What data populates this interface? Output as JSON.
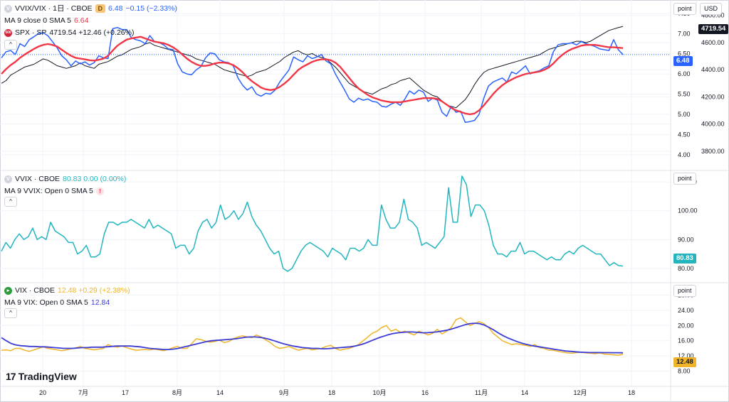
{
  "header": {
    "pair_title": "VVIX/VIX · 1日 · CBOE",
    "interval_badge": "D",
    "last_value": "6.48",
    "change": "−0.15 (−2.33%)",
    "ma_label": "MA 9 close 0 SMA 5",
    "ma_value": "6.64",
    "spx_icon": "500",
    "spx_label": "SPX · SP",
    "spx_value": "4719.54 +12.46 (+0.26%)"
  },
  "vvix_pane": {
    "title": "VVIX · CBOE",
    "value": "80.83 0.00 (0.00%)",
    "ma_label": "MA 9 VVIX: Open 0 SMA 5",
    "warning": "!"
  },
  "vix_pane": {
    "title": "VIX · CBOE",
    "value": "12.48 +0.29 (+2.38%)",
    "ma_label": "MA 9 VIX: Open 0 SMA 5",
    "ma_value": "12.84"
  },
  "axis": {
    "scale_button": "point",
    "currency_button": "USD",
    "collapse_icon": "chevron-up-icon",
    "collapse_glyph": "^"
  },
  "price_tags": {
    "spx": "4719.54",
    "ratio": "6.48",
    "vvix": "80.83",
    "vix": "12.48"
  },
  "logo": {
    "mark": "17",
    "name": "TradingView"
  },
  "colors": {
    "ratio": "#2962ff",
    "ratio_ma": "#f23645",
    "spx": "#131722",
    "vvix": "#22b5bf",
    "vix": "#f0b429",
    "vix_ma": "#3b3bd6",
    "grid": "#f0f3fa"
  },
  "chart_data": [
    {
      "type": "line",
      "pane": "main",
      "title": "VVIX/VIX · 1日 · CBOE",
      "x_ticks": [
        "20",
        "7月",
        "17",
        "8月",
        "14",
        "9月",
        "18",
        "10月",
        "16",
        "11月",
        "14",
        "12月",
        "18"
      ],
      "y_left_ticks": [
        "7.50",
        "7.00",
        "6.50",
        "6.00",
        "5.50",
        "5.00",
        "4.50",
        "4.00"
      ],
      "y_right_ticks": [
        "4800.00",
        "4600.00",
        "4400.00",
        "4200.00",
        "4000.00",
        "3800.00"
      ],
      "ylim": [
        3.75,
        7.55
      ],
      "y2lim": [
        3700,
        4830
      ],
      "series": [
        {
          "name": "VVIX/VIX",
          "axis": "left",
          "values": [
            6.4,
            6.55,
            6.58,
            6.48,
            6.75,
            6.68,
            6.85,
            6.92,
            7.0,
            7.02,
            6.95,
            6.8,
            6.65,
            6.45,
            6.35,
            6.2,
            6.32,
            6.25,
            6.3,
            6.22,
            6.28,
            6.45,
            6.4,
            6.38,
            7.12,
            7.15,
            7.1,
            7.1,
            6.9,
            6.85,
            6.82,
            6.75,
            6.95,
            6.8,
            6.78,
            6.72,
            6.62,
            6.6,
            6.25,
            6.05,
            6.0,
            5.98,
            6.1,
            6.18,
            6.4,
            6.52,
            6.5,
            6.35,
            6.3,
            6.28,
            6.2,
            5.9,
            5.72,
            5.6,
            5.68,
            5.5,
            5.45,
            5.52,
            5.5,
            5.6,
            5.8,
            5.95,
            6.1,
            6.42,
            6.35,
            6.3,
            6.45,
            6.38,
            6.42,
            6.48,
            6.32,
            6.25,
            6.0,
            5.8,
            5.6,
            5.38,
            5.3,
            5.4,
            5.35,
            5.38,
            5.32,
            5.3,
            5.2,
            5.18,
            5.25,
            5.3,
            5.22,
            5.38,
            5.58,
            5.5,
            5.6,
            5.55,
            5.32,
            5.4,
            5.35,
            5.05,
            4.95,
            5.2,
            5.05,
            5.08,
            4.8,
            4.82,
            4.85,
            5.0,
            5.4,
            5.7,
            5.8,
            5.85,
            5.9,
            5.8,
            6.05,
            6.0,
            6.1,
            6.2,
            6.0,
            6.05,
            6.08,
            6.15,
            6.2,
            6.55,
            6.72,
            6.75,
            6.75,
            6.77,
            6.72,
            6.8,
            6.75,
            6.72,
            6.68,
            6.62,
            6.6,
            6.58,
            6.85,
            6.6,
            6.48
          ]
        },
        {
          "name": "MA 9 close 0 SMA 5",
          "axis": "left",
          "values": [
            6.0,
            6.12,
            6.22,
            6.3,
            6.4,
            6.48,
            6.55,
            6.62,
            6.68,
            6.72,
            6.74,
            6.72,
            6.68,
            6.6,
            6.52,
            6.45,
            6.4,
            6.38,
            6.36,
            6.34,
            6.33,
            6.35,
            6.38,
            6.45,
            6.58,
            6.7,
            6.78,
            6.85,
            6.88,
            6.9,
            6.92,
            6.88,
            6.84,
            6.8,
            6.78,
            6.76,
            6.72,
            6.66,
            6.58,
            6.48,
            6.38,
            6.3,
            6.24,
            6.2,
            6.2,
            6.22,
            6.26,
            6.28,
            6.28,
            6.26,
            6.22,
            6.14,
            6.04,
            5.92,
            5.82,
            5.74,
            5.66,
            5.62,
            5.6,
            5.62,
            5.68,
            5.76,
            5.86,
            5.98,
            6.1,
            6.18,
            6.24,
            6.3,
            6.34,
            6.36,
            6.36,
            6.34,
            6.28,
            6.18,
            6.04,
            5.9,
            5.76,
            5.64,
            5.56,
            5.48,
            5.42,
            5.38,
            5.34,
            5.32,
            5.3,
            5.3,
            5.3,
            5.32,
            5.34,
            5.36,
            5.38,
            5.4,
            5.4,
            5.4,
            5.38,
            5.32,
            5.24,
            5.16,
            5.1,
            5.06,
            5.02,
            5.0,
            5.02,
            5.1,
            5.22,
            5.36,
            5.5,
            5.62,
            5.72,
            5.8,
            5.86,
            5.92,
            5.96,
            6.0,
            6.02,
            6.04,
            6.06,
            6.1,
            6.16,
            6.26,
            6.38,
            6.48,
            6.56,
            6.62,
            6.66,
            6.7,
            6.72,
            6.72,
            6.72,
            6.7,
            6.68,
            6.66,
            6.66,
            6.65,
            6.64
          ]
        },
        {
          "name": "SPX · SP",
          "axis": "right",
          "values": [
            4300,
            4320,
            4360,
            4380,
            4400,
            4420,
            4430,
            4440,
            4460,
            4480,
            4470,
            4450,
            4430,
            4420,
            4410,
            4420,
            4430,
            4450,
            4430,
            4420,
            4410,
            4440,
            4450,
            4460,
            4480,
            4500,
            4510,
            4530,
            4550,
            4560,
            4570,
            4590,
            4600,
            4580,
            4570,
            4560,
            4550,
            4540,
            4530,
            4520,
            4510,
            4500,
            4480,
            4470,
            4460,
            4450,
            4440,
            4420,
            4400,
            4390,
            4380,
            4370,
            4360,
            4350,
            4360,
            4380,
            4390,
            4400,
            4420,
            4440,
            4460,
            4490,
            4510,
            4530,
            4540,
            4520,
            4510,
            4520,
            4500,
            4490,
            4480,
            4450,
            4420,
            4380,
            4340,
            4300,
            4280,
            4260,
            4240,
            4230,
            4220,
            4240,
            4260,
            4270,
            4290,
            4300,
            4320,
            4330,
            4340,
            4310,
            4280,
            4250,
            4230,
            4210,
            4200,
            4170,
            4140,
            4130,
            4120,
            4150,
            4180,
            4230,
            4290,
            4340,
            4380,
            4400,
            4410,
            4420,
            4430,
            4440,
            4450,
            4460,
            4470,
            4480,
            4490,
            4500,
            4510,
            4530,
            4550,
            4560,
            4570,
            4580,
            4590,
            4600,
            4610,
            4610,
            4600,
            4610,
            4630,
            4650,
            4670,
            4690,
            4700,
            4710,
            4719.54
          ]
        }
      ]
    },
    {
      "type": "line",
      "pane": "vvix",
      "title": "VVIX · CBOE",
      "y_ticks": [
        "110.00",
        "100.00",
        "90.00",
        "80.00"
      ],
      "ylim": [
        79,
        111
      ],
      "series": [
        {
          "name": "VVIX · CBOE",
          "values": [
            86,
            89,
            87,
            90,
            92,
            90,
            91,
            94,
            90,
            91,
            90,
            96,
            93,
            92,
            91,
            89,
            89,
            85,
            86,
            88,
            84,
            84,
            85,
            92,
            96,
            96,
            95,
            96,
            96,
            97,
            96,
            95,
            94,
            97,
            94,
            95,
            94,
            93,
            92,
            87,
            88,
            88,
            85,
            87,
            93,
            96,
            97,
            94,
            96,
            102,
            97,
            98,
            100,
            97,
            99,
            103,
            98,
            95,
            93,
            90,
            87,
            85,
            86,
            80,
            79,
            80,
            83,
            86,
            88,
            89,
            88,
            87,
            86,
            84,
            87,
            86,
            85,
            83,
            87,
            87,
            86,
            87,
            90,
            88,
            88,
            102,
            97,
            94,
            94,
            96,
            104,
            97,
            96,
            94,
            88,
            89,
            88,
            87,
            89,
            91,
            108,
            96,
            96,
            112,
            109,
            98,
            102,
            102,
            100,
            95,
            88,
            85,
            85,
            84,
            86,
            86,
            89,
            85,
            86,
            86,
            85,
            84,
            83,
            84,
            83,
            83,
            85,
            86,
            85,
            87,
            88,
            87,
            86,
            85,
            85,
            83,
            81,
            82,
            81,
            80.83
          ]
        }
      ]
    },
    {
      "type": "line",
      "pane": "vix",
      "title": "VIX · CBOE",
      "y_ticks": [
        "28.00",
        "24.00",
        "20.00",
        "16.00",
        "12.00",
        "8.00"
      ],
      "ylim": [
        7,
        29
      ],
      "series": [
        {
          "name": "VIX · CBOE",
          "values": [
            13.5,
            13.6,
            13.4,
            14.0,
            14.0,
            13.5,
            13.2,
            13.6,
            14.0,
            14.4,
            14.0,
            13.8,
            13.6,
            13.4,
            13.6,
            13.9,
            14.1,
            14.5,
            14.0,
            13.8,
            13.6,
            13.8,
            14.0,
            15.0,
            14.5,
            14.3,
            14.6,
            14.2,
            13.8,
            13.5,
            13.6,
            13.7,
            13.6,
            13.8,
            13.6,
            13.4,
            13.7,
            14.2,
            14.5,
            14.0,
            14.0,
            15.2,
            16.5,
            16.3,
            15.9,
            15.6,
            15.8,
            16.2,
            15.5,
            15.8,
            16.5,
            17.0,
            17.3,
            17.0,
            16.8,
            17.5,
            17.0,
            16.2,
            15.5,
            14.5,
            14.0,
            14.2,
            14.5,
            14.0,
            13.5,
            13.8,
            14.0,
            13.6,
            13.8,
            14.0,
            14.5,
            14.8,
            14.0,
            13.5,
            13.8,
            14.0,
            14.5,
            15.0,
            16.0,
            17.0,
            18.0,
            18.5,
            19.5,
            20.0,
            18.5,
            19.0,
            18.2,
            18.5,
            18.0,
            17.5,
            18.5,
            18.0,
            17.5,
            18.0,
            19.0,
            17.8,
            18.5,
            19.5,
            21.5,
            22.0,
            21.0,
            20.0,
            20.5,
            21.0,
            20.5,
            19.5,
            18.0,
            17.0,
            16.0,
            15.5,
            15.0,
            15.2,
            15.0,
            14.8,
            14.5,
            15.0,
            14.2,
            14.0,
            13.5,
            13.5,
            13.2,
            13.0,
            12.8,
            12.7,
            12.9,
            13.0,
            12.8,
            12.7,
            12.6,
            12.8,
            12.5,
            12.4,
            12.3,
            12.2,
            12.48
          ]
        },
        {
          "name": "MA 9 VIX: Open 0 SMA 5",
          "values": [
            16.8,
            16.0,
            15.3,
            14.9,
            14.7,
            14.6,
            14.5,
            14.5,
            14.4,
            14.4,
            14.3,
            14.2,
            14.1,
            14.0,
            14.0,
            14.0,
            14.1,
            14.2,
            14.2,
            14.3,
            14.3,
            14.3,
            14.4,
            14.5,
            14.6,
            14.6,
            14.6,
            14.6,
            14.5,
            14.4,
            14.2,
            14.0,
            13.9,
            13.8,
            13.7,
            13.7,
            13.8,
            14.0,
            14.3,
            14.6,
            14.9,
            15.2,
            15.5,
            15.8,
            16.0,
            16.1,
            16.2,
            16.3,
            16.4,
            16.5,
            16.7,
            16.9,
            17.0,
            17.0,
            16.9,
            16.7,
            16.4,
            16.0,
            15.6,
            15.2,
            14.9,
            14.6,
            14.4,
            14.2,
            14.1,
            14.0,
            14.0,
            13.9,
            13.9,
            14.0,
            14.1,
            14.2,
            14.3,
            14.4,
            14.6,
            14.9,
            15.3,
            15.8,
            16.3,
            16.8,
            17.2,
            17.6,
            17.9,
            18.1,
            18.2,
            18.3,
            18.3,
            18.2,
            18.1,
            18.1,
            18.2,
            18.3,
            18.5,
            18.7,
            19.0,
            19.4,
            19.8,
            20.2,
            20.5,
            20.6,
            20.5,
            20.1,
            19.5,
            18.8,
            18.0,
            17.3,
            16.7,
            16.2,
            15.7,
            15.3,
            15.0,
            14.7,
            14.5,
            14.3,
            14.1,
            13.9,
            13.7,
            13.5,
            13.3,
            13.2,
            13.1,
            13.0,
            12.95,
            12.9,
            12.9,
            12.9,
            12.88,
            12.87,
            12.86,
            12.85,
            12.84
          ]
        }
      ]
    }
  ]
}
